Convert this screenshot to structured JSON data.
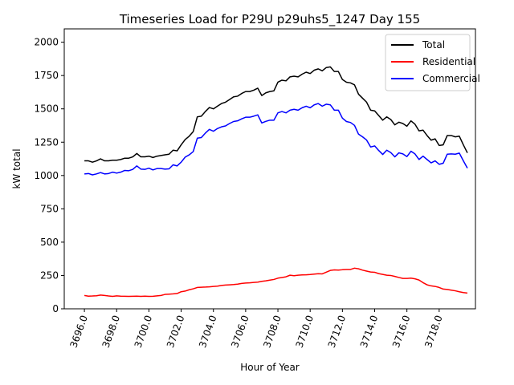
{
  "chart_data": {
    "type": "line",
    "title": "Timeseries Load for P29U p29uhs5_1247  Day 155",
    "xlabel": "Hour of Year",
    "ylabel": "kW total",
    "xlim": [
      3694.75,
      3720.25
    ],
    "ylim": [
      0,
      2100
    ],
    "x_ticks": [
      3696,
      3698,
      3700,
      3702,
      3704,
      3706,
      3708,
      3710,
      3712,
      3714,
      3716,
      3718
    ],
    "x_tick_labels": [
      "3696.0",
      "3698.0",
      "3700.0",
      "3702.0",
      "3704.0",
      "3706.0",
      "3708.0",
      "3710.0",
      "3712.0",
      "3714.0",
      "3716.0",
      "3718.0"
    ],
    "y_ticks": [
      0,
      250,
      500,
      750,
      1000,
      1250,
      1500,
      1750,
      2000
    ],
    "y_tick_labels": [
      "0",
      "250",
      "500",
      "750",
      "1000",
      "1250",
      "1500",
      "1750",
      "2000"
    ],
    "legend_position": "top-right",
    "grid": false,
    "x_start": 3696,
    "x_step": 0.25,
    "series": [
      {
        "name": "Total",
        "color": "#000000",
        "values": [
          1110,
          1110,
          1100,
          1110,
          1125,
          1110,
          1110,
          1115,
          1115,
          1120,
          1130,
          1130,
          1140,
          1165,
          1140,
          1140,
          1145,
          1135,
          1145,
          1150,
          1155,
          1160,
          1190,
          1185,
          1230,
          1270,
          1295,
          1330,
          1440,
          1445,
          1480,
          1510,
          1500,
          1520,
          1540,
          1550,
          1570,
          1590,
          1595,
          1615,
          1630,
          1630,
          1640,
          1655,
          1600,
          1620,
          1630,
          1635,
          1700,
          1715,
          1710,
          1740,
          1745,
          1740,
          1760,
          1775,
          1765,
          1790,
          1800,
          1785,
          1810,
          1815,
          1780,
          1780,
          1720,
          1700,
          1695,
          1680,
          1610,
          1580,
          1550,
          1490,
          1485,
          1450,
          1415,
          1440,
          1420,
          1380,
          1400,
          1390,
          1370,
          1410,
          1385,
          1335,
          1340,
          1300,
          1265,
          1275,
          1225,
          1230,
          1300,
          1300,
          1290,
          1295,
          1230,
          1170
        ]
      },
      {
        "name": "Residential",
        "color": "#ff0000",
        "values": [
          100,
          95,
          96,
          98,
          103,
          100,
          96,
          93,
          97,
          95,
          94,
          93,
          94,
          95,
          93,
          95,
          93,
          94,
          97,
          100,
          108,
          110,
          112,
          115,
          128,
          133,
          143,
          150,
          160,
          162,
          163,
          165,
          168,
          170,
          175,
          178,
          180,
          182,
          185,
          190,
          193,
          195,
          198,
          200,
          206,
          210,
          215,
          220,
          230,
          235,
          240,
          252,
          248,
          252,
          254,
          255,
          257,
          260,
          263,
          262,
          275,
          288,
          292,
          290,
          293,
          295,
          295,
          305,
          300,
          290,
          283,
          276,
          274,
          264,
          258,
          252,
          250,
          243,
          235,
          228,
          228,
          230,
          225,
          216,
          196,
          180,
          172,
          168,
          160,
          148,
          145,
          140,
          135,
          128,
          122,
          118
        ]
      },
      {
        "name": "Commercial",
        "color": "#0000ff",
        "values": [
          1012,
          1015,
          1005,
          1012,
          1022,
          1012,
          1015,
          1025,
          1018,
          1025,
          1038,
          1036,
          1046,
          1072,
          1048,
          1046,
          1055,
          1042,
          1052,
          1052,
          1048,
          1050,
          1080,
          1072,
          1100,
          1138,
          1155,
          1180,
          1280,
          1285,
          1318,
          1346,
          1332,
          1352,
          1365,
          1372,
          1390,
          1405,
          1410,
          1425,
          1437,
          1437,
          1445,
          1455,
          1394,
          1406,
          1415,
          1415,
          1470,
          1480,
          1470,
          1490,
          1497,
          1490,
          1508,
          1520,
          1508,
          1530,
          1540,
          1520,
          1535,
          1530,
          1490,
          1490,
          1430,
          1405,
          1398,
          1376,
          1310,
          1290,
          1266,
          1214,
          1222,
          1188,
          1158,
          1190,
          1172,
          1140,
          1170,
          1162,
          1142,
          1182,
          1162,
          1120,
          1145,
          1120,
          1095,
          1110,
          1084,
          1092,
          1160,
          1162,
          1160,
          1168,
          1110,
          1055
        ]
      }
    ]
  }
}
